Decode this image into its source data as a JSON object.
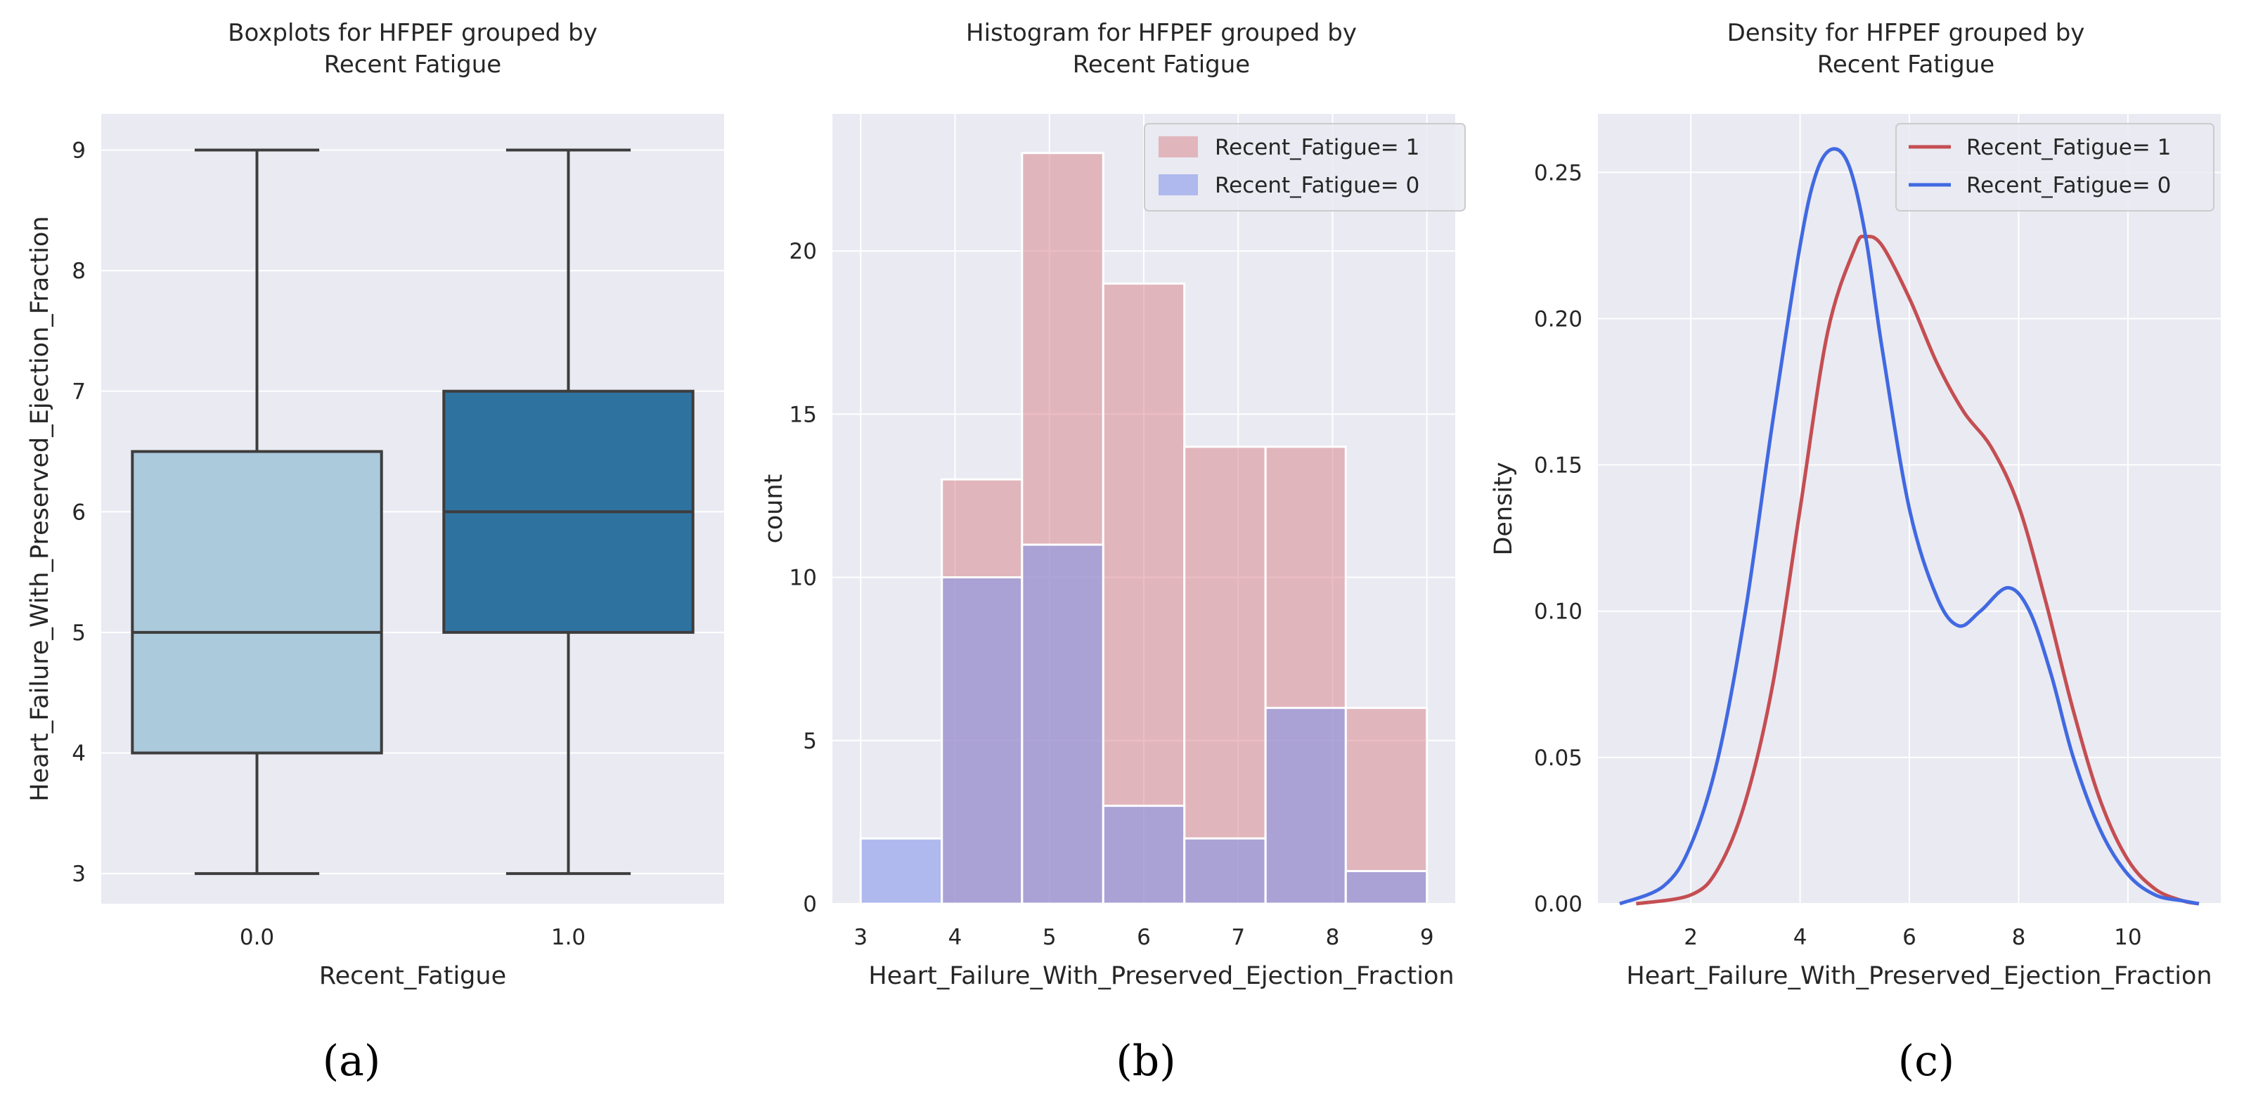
{
  "colors": {
    "panel_bg": "#eaeaf2",
    "grid": "#ffffff",
    "box_light": "#abcadc",
    "box_dark": "#2e72a0",
    "box_line": "#3d3d3d",
    "hist_red": "#d9898f",
    "hist_blue": "#7d8fe9",
    "kde_red": "#c44e52",
    "kde_blue": "#4169e1"
  },
  "panels": {
    "a": {
      "caption": "(a)"
    },
    "b": {
      "caption": "(b)"
    },
    "c": {
      "caption": "(c)"
    }
  },
  "chart_data": [
    {
      "type": "box",
      "title_lines": [
        "Boxplots for HFPEF grouped by",
        "Recent Fatigue"
      ],
      "xlabel": "Recent_Fatigue",
      "ylabel": "Heart_Failure_With_Preserved_Ejection_Fraction",
      "ylim": [
        2.75,
        9.3
      ],
      "yticks": [
        3,
        4,
        5,
        6,
        7,
        8,
        9
      ],
      "categories": [
        "0.0",
        "1.0"
      ],
      "boxes": [
        {
          "category": "0.0",
          "min": 3,
          "q1": 4,
          "median": 5,
          "q3": 6.5,
          "max": 9,
          "color": "#abcadc"
        },
        {
          "category": "1.0",
          "min": 3,
          "q1": 5,
          "median": 6,
          "q3": 7,
          "max": 9,
          "color": "#2e72a0"
        }
      ]
    },
    {
      "type": "bar",
      "subtype": "histogram",
      "title_lines": [
        "Histogram for HFPEF grouped by",
        "Recent Fatigue"
      ],
      "xlabel": "Heart_Failure_With_Preserved_Ejection_Fraction",
      "ylabel": "count",
      "xlim": [
        2.7,
        9.3
      ],
      "ylim": [
        0,
        24.2
      ],
      "xticks": [
        3,
        4,
        5,
        6,
        7,
        8,
        9
      ],
      "yticks": [
        0,
        5,
        10,
        15,
        20
      ],
      "series": [
        {
          "name": "Recent_Fatigue= 1",
          "bin_edges": [
            3.86,
            4.71,
            5.57,
            6.43,
            7.29,
            8.14,
            9.0
          ],
          "counts": [
            13,
            23,
            19,
            14,
            14,
            6
          ]
        },
        {
          "name": "Recent_Fatigue= 0",
          "bin_edges": [
            3.0,
            3.86,
            4.71,
            5.57,
            6.43,
            7.29,
            8.14,
            9.0
          ],
          "counts": [
            2,
            10,
            11,
            3,
            2,
            6,
            1
          ]
        }
      ]
    },
    {
      "type": "line",
      "subtype": "density",
      "title_lines": [
        "Density for HFPEF grouped by",
        "Recent Fatigue"
      ],
      "xlabel": "Heart_Failure_With_Preserved_Ejection_Fraction",
      "ylabel": "Density",
      "xlim": [
        0.3,
        11.7
      ],
      "ylim": [
        0,
        0.27
      ],
      "xticks": [
        2,
        4,
        6,
        8,
        10
      ],
      "yticks": [
        0.0,
        0.05,
        0.1,
        0.15,
        0.2,
        0.25
      ],
      "ytick_labels": [
        "0.00",
        "0.05",
        "0.10",
        "0.15",
        "0.20",
        "0.25"
      ],
      "series": [
        {
          "name": "Recent_Fatigue= 1",
          "x": [
            1.0,
            2.0,
            2.5,
            3.0,
            3.5,
            4.0,
            4.5,
            5.0,
            5.2,
            5.5,
            6.0,
            6.5,
            7.0,
            7.5,
            8.0,
            8.5,
            9.0,
            9.5,
            10.0,
            10.5,
            11.0,
            11.3
          ],
          "y": [
            0.0,
            0.003,
            0.012,
            0.035,
            0.075,
            0.135,
            0.195,
            0.224,
            0.228,
            0.225,
            0.207,
            0.185,
            0.168,
            0.156,
            0.136,
            0.103,
            0.066,
            0.035,
            0.015,
            0.005,
            0.001,
            0.0
          ]
        },
        {
          "name": "Recent_Fatigue= 0",
          "x": [
            0.7,
            1.5,
            2.0,
            2.5,
            3.0,
            3.5,
            4.0,
            4.3,
            4.6,
            4.9,
            5.2,
            5.5,
            6.0,
            6.5,
            6.9,
            7.3,
            7.8,
            8.2,
            8.6,
            9.0,
            9.5,
            10.0,
            10.5,
            11.0,
            11.3
          ],
          "y": [
            0.0,
            0.006,
            0.02,
            0.05,
            0.1,
            0.165,
            0.225,
            0.25,
            0.258,
            0.252,
            0.228,
            0.19,
            0.135,
            0.105,
            0.095,
            0.1,
            0.108,
            0.1,
            0.078,
            0.05,
            0.025,
            0.01,
            0.003,
            0.001,
            0.0
          ]
        }
      ]
    }
  ]
}
